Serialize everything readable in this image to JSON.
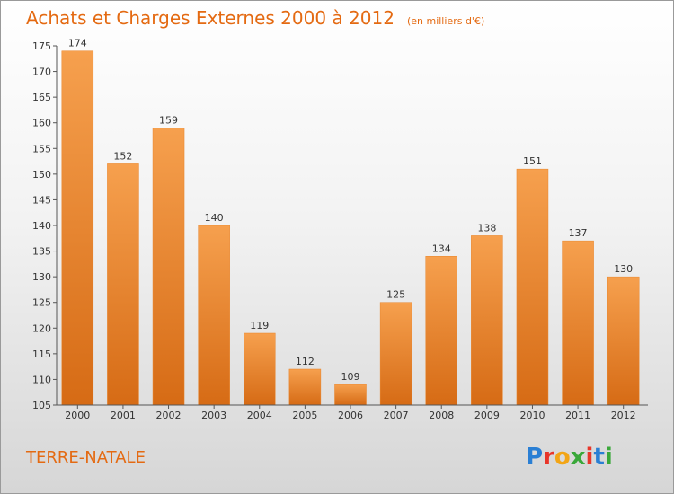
{
  "chart_data": {
    "type": "bar",
    "title": "Achats et Charges Externes 2000 à 2012",
    "subtitle": "(en milliers d'€)",
    "categories": [
      "2000",
      "2001",
      "2002",
      "2003",
      "2004",
      "2005",
      "2006",
      "2007",
      "2008",
      "2009",
      "2010",
      "2011",
      "2012"
    ],
    "values": [
      174,
      152,
      159,
      140,
      119,
      112,
      109,
      125,
      134,
      138,
      151,
      137,
      130
    ],
    "ylim": [
      105,
      175
    ],
    "yticks": [
      105,
      110,
      115,
      120,
      125,
      130,
      135,
      140,
      145,
      150,
      155,
      160,
      165,
      170,
      175
    ],
    "grid": false,
    "bar_color": "#f08a2e"
  },
  "footer": {
    "location": "TERRE-NATALE",
    "logo": "Proxiti"
  }
}
